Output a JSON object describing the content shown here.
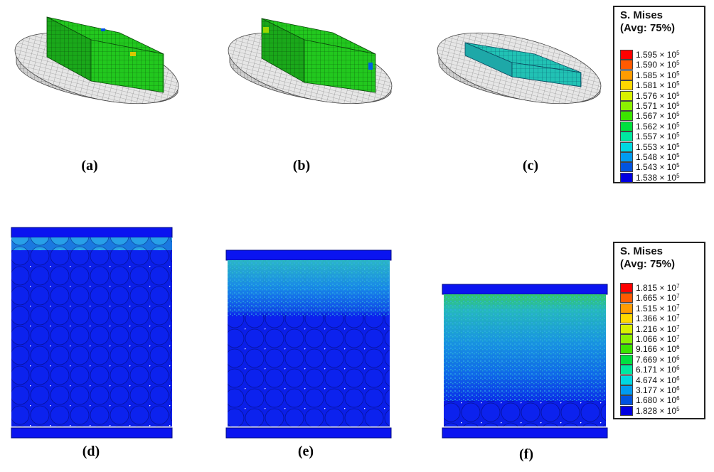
{
  "captions": {
    "a": "(a)",
    "b": "(b)",
    "c": "(c)",
    "d": "(d)",
    "e": "(e)",
    "f": "(f)"
  },
  "legend_top": {
    "title_line1": "S. Mises",
    "title_line2": "(Avg: 75%)",
    "entries": [
      {
        "mant": "1.595",
        "exp": "5",
        "color": "#ff0000"
      },
      {
        "mant": "1.590",
        "exp": "5",
        "color": "#ff5a00"
      },
      {
        "mant": "1.585",
        "exp": "5",
        "color": "#ff9c00"
      },
      {
        "mant": "1.581",
        "exp": "5",
        "color": "#ffd800"
      },
      {
        "mant": "1.576",
        "exp": "5",
        "color": "#d8f000"
      },
      {
        "mant": "1.571",
        "exp": "5",
        "color": "#8cf000"
      },
      {
        "mant": "1.567",
        "exp": "5",
        "color": "#3ce400"
      },
      {
        "mant": "1.562",
        "exp": "5",
        "color": "#00e040"
      },
      {
        "mant": "1.557",
        "exp": "5",
        "color": "#00e8a0"
      },
      {
        "mant": "1.553",
        "exp": "5",
        "color": "#00d8e0"
      },
      {
        "mant": "1.548",
        "exp": "5",
        "color": "#009cf0"
      },
      {
        "mant": "1.543",
        "exp": "5",
        "color": "#0054e0"
      },
      {
        "mant": "1.538",
        "exp": "5",
        "color": "#0000e0"
      }
    ]
  },
  "legend_bottom": {
    "title_line1": "S. Mises",
    "title_line2": "(Avg: 75%)",
    "entries": [
      {
        "mant": "1.815",
        "exp": "7",
        "color": "#ff0000"
      },
      {
        "mant": "1.665",
        "exp": "7",
        "color": "#ff5a00"
      },
      {
        "mant": "1.515",
        "exp": "7",
        "color": "#ff9c00"
      },
      {
        "mant": "1.366",
        "exp": "7",
        "color": "#ffd800"
      },
      {
        "mant": "1.216",
        "exp": "7",
        "color": "#d8f000"
      },
      {
        "mant": "1.066",
        "exp": "7",
        "color": "#8cf000"
      },
      {
        "mant": "9.166",
        "exp": "6",
        "color": "#3ce400"
      },
      {
        "mant": "7.669",
        "exp": "6",
        "color": "#00e040"
      },
      {
        "mant": "6.171",
        "exp": "6",
        "color": "#00e8a0"
      },
      {
        "mant": "4.674",
        "exp": "6",
        "color": "#00d8e0"
      },
      {
        "mant": "3.177",
        "exp": "6",
        "color": "#009cf0"
      },
      {
        "mant": "1.680",
        "exp": "6",
        "color": "#0054e0"
      },
      {
        "mant": "1.828",
        "exp": "5",
        "color": "#0000e0"
      }
    ]
  },
  "colors": {
    "block_green": "#22c81e",
    "block_cyan": "#1fb8c8",
    "particle_blue": "#0a1ee8",
    "plate_blue": "#0a14f0",
    "disc_gray": "#d8d8d8"
  }
}
